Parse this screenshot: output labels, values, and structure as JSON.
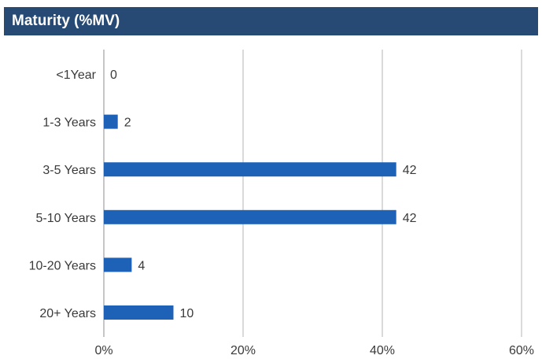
{
  "header": {
    "title": "Maturity (%MV)"
  },
  "chart_data": {
    "type": "bar",
    "orientation": "horizontal",
    "title": "Maturity (%MV)",
    "categories": [
      "<1Year",
      "1-3 Years",
      "3-5 Years",
      "5-10 Years",
      "10-20 Years",
      "20+ Years"
    ],
    "values": [
      0,
      2,
      42,
      42,
      4,
      10
    ],
    "data_labels": [
      "0",
      "2",
      "42",
      "42",
      "4",
      "10"
    ],
    "xlim": [
      0,
      60
    ],
    "xticks": [
      0,
      20,
      40,
      60
    ],
    "xtick_labels": [
      "0%",
      "20%",
      "40%",
      "60%"
    ],
    "xlabel": "",
    "ylabel": "",
    "grid": "vertical",
    "legend": "none",
    "colors": {
      "bar": "#1e62b8",
      "header": "#264a73",
      "grid": "#b5b5b5"
    }
  }
}
